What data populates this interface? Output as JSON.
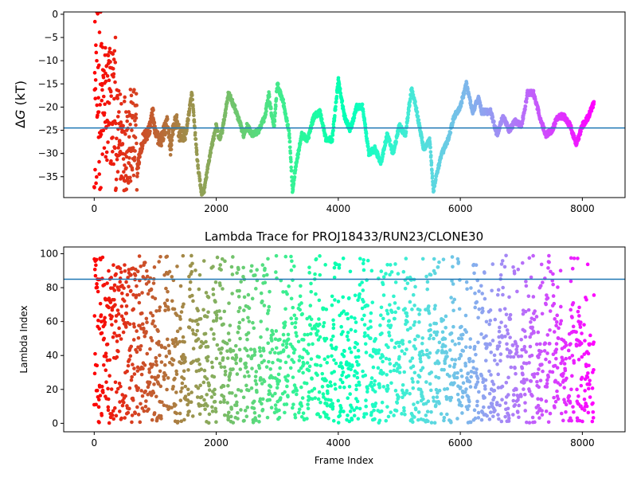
{
  "chart_data": [
    {
      "type": "scatter",
      "title": "",
      "xlabel": "",
      "ylabel": "ΔG (kT)",
      "ylabel_parts": {
        "prefix": "Δ",
        "italic": "G",
        "suffix": " (kT)"
      },
      "xlim": [
        -500,
        8700
      ],
      "ylim": [
        -39.5,
        0.5
      ],
      "xticks": [
        0,
        2000,
        4000,
        6000,
        8000
      ],
      "xtick_labels": [
        "0",
        "2000",
        "4000",
        "6000",
        "8000"
      ],
      "yticks": [
        0,
        -5,
        -10,
        -15,
        -20,
        -25,
        -30,
        -35
      ],
      "ytick_labels": [
        "0",
        "−5",
        "−10",
        "−15",
        "−20",
        "−25",
        "−30",
        "−35"
      ],
      "hline": -24.5,
      "hline_color": "#1f77b4",
      "colormap": "rainbow (red at frame 0 → violet at last frame)",
      "grid": false,
      "trace_x": [
        0,
        50,
        100,
        150,
        200,
        300,
        400,
        500,
        600,
        700,
        750,
        800,
        900,
        960,
        1000,
        1100,
        1150,
        1200,
        1250,
        1300,
        1350,
        1400,
        1500,
        1600,
        1700,
        1760,
        1800,
        1900,
        1950,
        2000,
        2050,
        2100,
        2200,
        2300,
        2400,
        2450,
        2500,
        2600,
        2700,
        2800,
        2860,
        2900,
        2950,
        3000,
        3100,
        3200,
        3250,
        3300,
        3400,
        3500,
        3600,
        3700,
        3800,
        3900,
        4000,
        4050,
        4100,
        4200,
        4300,
        4400,
        4500,
        4600,
        4700,
        4800,
        4900,
        5000,
        5100,
        5200,
        5260,
        5300,
        5400,
        5500,
        5560,
        5600,
        5700,
        5800,
        5900,
        6000,
        6100,
        6200,
        6300,
        6350,
        6400,
        6500,
        6600,
        6700,
        6800,
        6900,
        7000,
        7050,
        7100,
        7200,
        7300,
        7400,
        7500,
        7600,
        7700,
        7800,
        7900,
        8000,
        8100,
        8190
      ],
      "trace_y": [
        -2,
        -10,
        -18,
        -25,
        -5,
        -18,
        -30,
        -25,
        -15,
        -34,
        -30,
        -27,
        -25,
        -21,
        -26,
        -27,
        -25,
        -23,
        -29,
        -24,
        -23,
        -26,
        -26,
        -17,
        -33,
        -38.5,
        -38,
        -30,
        -27,
        -24,
        -27,
        -25,
        -17,
        -20,
        -24,
        -26,
        -24,
        -26,
        -25,
        -22,
        -17,
        -21,
        -24,
        -15,
        -19,
        -26,
        -38,
        -33,
        -26,
        -27,
        -22,
        -21,
        -27,
        -27,
        -14,
        -18,
        -22,
        -25,
        -20,
        -20,
        -30,
        -29,
        -32,
        -26,
        -30,
        -24,
        -26,
        -16,
        -19,
        -22,
        -29,
        -27,
        -38.5,
        -35,
        -30,
        -27,
        -22,
        -20,
        -15,
        -21,
        -18,
        -21,
        -21,
        -21,
        -26,
        -22,
        -25,
        -23,
        -24,
        -21,
        -17,
        -17,
        -22,
        -26,
        -25,
        -22,
        -22,
        -24,
        -28,
        -24,
        -22,
        -19
      ]
    },
    {
      "type": "scatter",
      "title": "Lambda Trace for PROJ18433/RUN23/CLONE30",
      "xlabel": "Frame Index",
      "ylabel": "Lambda Index",
      "xlim": [
        -500,
        8700
      ],
      "ylim": [
        -5,
        104
      ],
      "xticks": [
        0,
        2000,
        4000,
        6000,
        8000
      ],
      "xtick_labels": [
        "0",
        "2000",
        "4000",
        "6000",
        "8000"
      ],
      "yticks": [
        0,
        20,
        40,
        60,
        80,
        100
      ],
      "ytick_labels": [
        "0",
        "20",
        "40",
        "60",
        "80",
        "100"
      ],
      "hline": 85,
      "hline_color": "#1f77b4",
      "colormap": "rainbow (red at frame 0 → violet at last frame)",
      "grid": false,
      "frame_range": [
        0,
        8190
      ],
      "value_range": [
        0,
        99
      ]
    }
  ]
}
